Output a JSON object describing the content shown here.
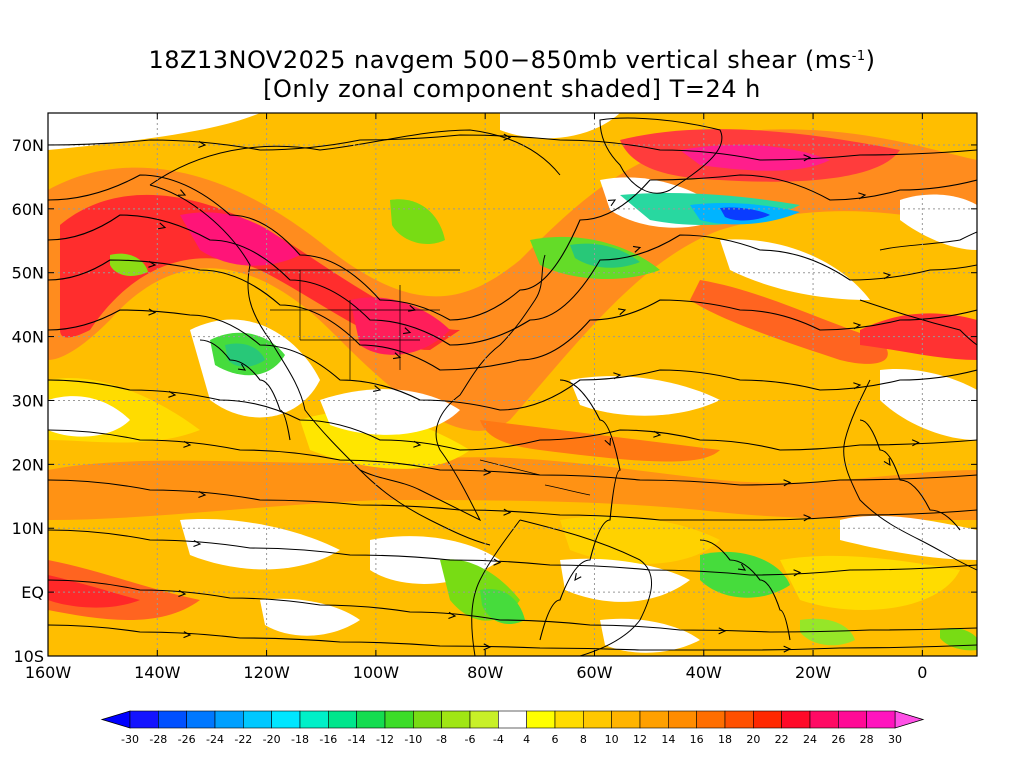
{
  "title": {
    "line1_prefix": "18Z13NOV2025 navgem 500−850mb vertical shear (ms",
    "line1_sup": "-1",
    "line1_suffix": ")",
    "line2": "[Only zonal component shaded] T=24 h"
  },
  "map": {
    "lon_range": [
      -160,
      10
    ],
    "lat_range": [
      -10,
      75
    ],
    "lat_ticks": [
      {
        "value": 70,
        "label": "70N"
      },
      {
        "value": 60,
        "label": "60N"
      },
      {
        "value": 50,
        "label": "50N"
      },
      {
        "value": 40,
        "label": "40N"
      },
      {
        "value": 30,
        "label": "30N"
      },
      {
        "value": 20,
        "label": "20N"
      },
      {
        "value": 10,
        "label": "10N"
      },
      {
        "value": 0,
        "label": "EQ"
      },
      {
        "value": -10,
        "label": "10S"
      }
    ],
    "lon_ticks": [
      {
        "value": -160,
        "label": "160W"
      },
      {
        "value": -140,
        "label": "140W"
      },
      {
        "value": -120,
        "label": "120W"
      },
      {
        "value": -100,
        "label": "100W"
      },
      {
        "value": -80,
        "label": "80W"
      },
      {
        "value": -60,
        "label": "60W"
      },
      {
        "value": -40,
        "label": "40W"
      },
      {
        "value": -20,
        "label": "20W"
      },
      {
        "value": 0,
        "label": "0"
      }
    ],
    "gridlines": "dotted",
    "shading_field": "zonal vertical shear (m/s)",
    "streamlines": true
  },
  "colorbar": {
    "labels": [
      "-30",
      "-28",
      "-26",
      "-24",
      "-22",
      "-20",
      "-18",
      "-16",
      "-14",
      "-12",
      "-10",
      "-8",
      "-6",
      "-4",
      "4",
      "6",
      "8",
      "10",
      "12",
      "14",
      "16",
      "18",
      "20",
      "22",
      "24",
      "26",
      "28",
      "30"
    ],
    "colors": [
      "#1414ff",
      "#0050ff",
      "#0078ff",
      "#00a0ff",
      "#00c8ff",
      "#00e6ff",
      "#00f0c8",
      "#00e68c",
      "#14dc50",
      "#3cdc28",
      "#78dc14",
      "#a0e614",
      "#c8f028",
      "#ffffff",
      "#ffff00",
      "#ffdc00",
      "#ffc800",
      "#ffb400",
      "#ffa000",
      "#ff8c00",
      "#ff6e00",
      "#ff5000",
      "#ff2800",
      "#ff0a28",
      "#ff0a64",
      "#ff0a96",
      "#ff14be"
    ],
    "end_low": "#0000ff",
    "end_high": "#ff50e6"
  }
}
